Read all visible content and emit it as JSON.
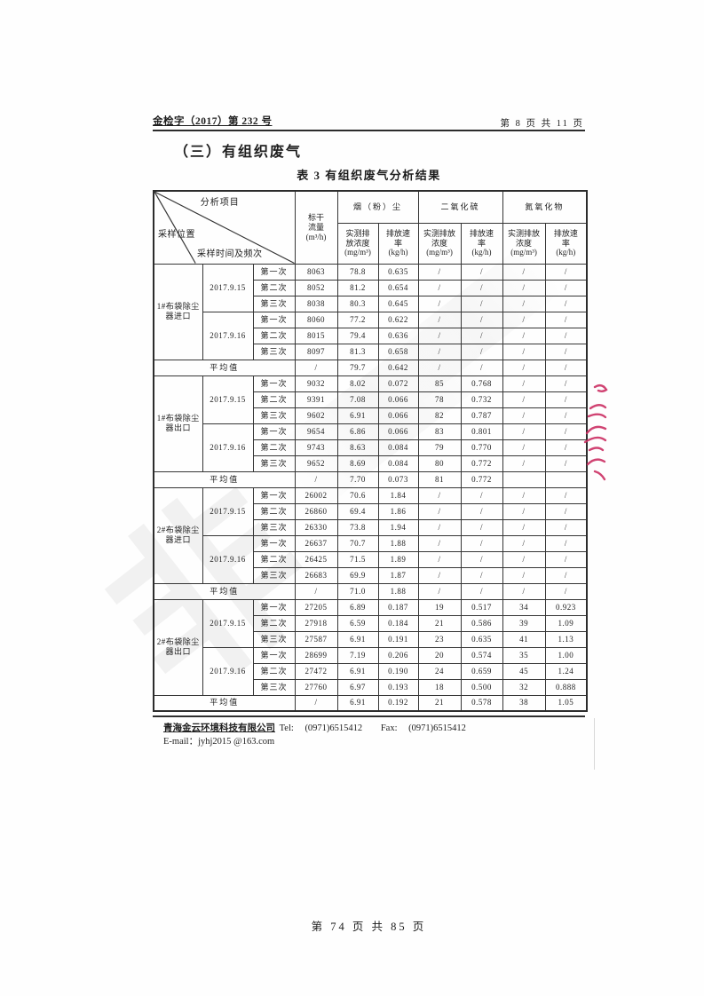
{
  "page": {
    "doc_number": "金检字（2017）第 232 号",
    "page_info": "第 8 页 共 11 页",
    "section_title": "（三）有组织废气",
    "table_caption": "表 3  有组织废气分析结果",
    "bottom_page_info": "第 74 页 共 85 页",
    "watermark_glyph": "非"
  },
  "footer": {
    "company": "青海金云环境科技有限公司",
    "tel_label": "Tel:",
    "tel": "(0971)6515412",
    "fax_label": "Fax:",
    "fax": "(0971)6515412",
    "email_line": "E-mail：jyhj2015 @163.com"
  },
  "annotation_color": "#cc2f63",
  "table": {
    "header": {
      "corner": {
        "top_right": "分析项目",
        "bottom_left": "采样位置",
        "bottom_center": "采样时间及频次"
      },
      "flow_label": "标干\n流量\n(m³/h)",
      "col_groups": [
        {
          "label": "烟（粉）尘",
          "sub": [
            "实测排\n放浓度\n(mg/m³)",
            "排放速\n率\n(kg/h)"
          ]
        },
        {
          "label": "二氧化硫",
          "sub": [
            "实测排放\n浓度\n(mg/m³)",
            "排放速\n率\n(kg/h)"
          ]
        },
        {
          "label": "氮氧化物",
          "sub": [
            "实测排放\n浓度\n(mg/m³)",
            "排放速\n率\n(kg/h)"
          ]
        }
      ]
    },
    "avg_label": "平均值",
    "groups": [
      {
        "location": "1#布袋除尘器进口",
        "dates": [
          {
            "date": "2017.9.15",
            "runs": [
              {
                "label": "第一次",
                "values": [
                  "8063",
                  "78.8",
                  "0.635",
                  "/",
                  "/",
                  "/",
                  "/"
                ]
              },
              {
                "label": "第二次",
                "values": [
                  "8052",
                  "81.2",
                  "0.654",
                  "/",
                  "/",
                  "/",
                  "/"
                ]
              },
              {
                "label": "第三次",
                "values": [
                  "8038",
                  "80.3",
                  "0.645",
                  "/",
                  "/",
                  "/",
                  "/"
                ]
              }
            ]
          },
          {
            "date": "2017.9.16",
            "runs": [
              {
                "label": "第一次",
                "values": [
                  "8060",
                  "77.2",
                  "0.622",
                  "/",
                  "/",
                  "/",
                  "/"
                ]
              },
              {
                "label": "第二次",
                "values": [
                  "8015",
                  "79.4",
                  "0.636",
                  "/",
                  "/",
                  "/",
                  "/"
                ]
              },
              {
                "label": "第三次",
                "values": [
                  "8097",
                  "81.3",
                  "0.658",
                  "/",
                  "/",
                  "/",
                  "/"
                ]
              }
            ]
          }
        ],
        "average": [
          "/",
          "79.7",
          "0.642",
          "/",
          "/",
          "/",
          "/"
        ]
      },
      {
        "location": "1#布袋除尘器出口",
        "dates": [
          {
            "date": "2017.9.15",
            "runs": [
              {
                "label": "第一次",
                "values": [
                  "9032",
                  "8.02",
                  "0.072",
                  "85",
                  "0.768",
                  "/",
                  "/"
                ]
              },
              {
                "label": "第二次",
                "values": [
                  "9391",
                  "7.08",
                  "0.066",
                  "78",
                  "0.732",
                  "/",
                  "/"
                ]
              },
              {
                "label": "第三次",
                "values": [
                  "9602",
                  "6.91",
                  "0.066",
                  "82",
                  "0.787",
                  "/",
                  "/"
                ]
              }
            ]
          },
          {
            "date": "2017.9.16",
            "runs": [
              {
                "label": "第一次",
                "values": [
                  "9654",
                  "6.86",
                  "0.066",
                  "83",
                  "0.801",
                  "/",
                  "/"
                ]
              },
              {
                "label": "第二次",
                "values": [
                  "9743",
                  "8.63",
                  "0.084",
                  "79",
                  "0.770",
                  "/",
                  "/"
                ]
              },
              {
                "label": "第三次",
                "values": [
                  "9652",
                  "8.69",
                  "0.084",
                  "80",
                  "0.772",
                  "/",
                  "/"
                ]
              }
            ]
          }
        ],
        "average": [
          "/",
          "7.70",
          "0.073",
          "81",
          "0.772",
          "",
          ""
        ]
      },
      {
        "location": "2#布袋除尘器进口",
        "dates": [
          {
            "date": "2017.9.15",
            "runs": [
              {
                "label": "第一次",
                "values": [
                  "26002",
                  "70.6",
                  "1.84",
                  "/",
                  "/",
                  "/",
                  "/"
                ]
              },
              {
                "label": "第二次",
                "values": [
                  "26860",
                  "69.4",
                  "1.86",
                  "/",
                  "/",
                  "/",
                  "/"
                ]
              },
              {
                "label": "第三次",
                "values": [
                  "26330",
                  "73.8",
                  "1.94",
                  "/",
                  "/",
                  "/",
                  "/"
                ]
              }
            ]
          },
          {
            "date": "2017.9.16",
            "runs": [
              {
                "label": "第一次",
                "values": [
                  "26637",
                  "70.7",
                  "1.88",
                  "/",
                  "/",
                  "/",
                  "/"
                ]
              },
              {
                "label": "第二次",
                "values": [
                  "26425",
                  "71.5",
                  "1.89",
                  "/",
                  "/",
                  "/",
                  "/"
                ]
              },
              {
                "label": "第三次",
                "values": [
                  "26683",
                  "69.9",
                  "1.87",
                  "/",
                  "/",
                  "/",
                  "/"
                ]
              }
            ]
          }
        ],
        "average": [
          "/",
          "71.0",
          "1.88",
          "/",
          "/",
          "/",
          "/"
        ]
      },
      {
        "location": "2#布袋除尘器出口",
        "dates": [
          {
            "date": "2017.9.15",
            "runs": [
              {
                "label": "第一次",
                "values": [
                  "27205",
                  "6.89",
                  "0.187",
                  "19",
                  "0.517",
                  "34",
                  "0.923"
                ]
              },
              {
                "label": "第二次",
                "values": [
                  "27918",
                  "6.59",
                  "0.184",
                  "21",
                  "0.586",
                  "39",
                  "1.09"
                ]
              },
              {
                "label": "第三次",
                "values": [
                  "27587",
                  "6.91",
                  "0.191",
                  "23",
                  "0.635",
                  "41",
                  "1.13"
                ]
              }
            ]
          },
          {
            "date": "2017.9.16",
            "runs": [
              {
                "label": "第一次",
                "values": [
                  "28699",
                  "7.19",
                  "0.206",
                  "20",
                  "0.574",
                  "35",
                  "1.00"
                ]
              },
              {
                "label": "第二次",
                "values": [
                  "27472",
                  "6.91",
                  "0.190",
                  "24",
                  "0.659",
                  "45",
                  "1.24"
                ]
              },
              {
                "label": "第三次",
                "values": [
                  "27760",
                  "6.97",
                  "0.193",
                  "18",
                  "0.500",
                  "32",
                  "0.888"
                ]
              }
            ]
          }
        ],
        "average": [
          "/",
          "6.91",
          "0.192",
          "21",
          "0.578",
          "38",
          "1.05"
        ]
      }
    ]
  }
}
